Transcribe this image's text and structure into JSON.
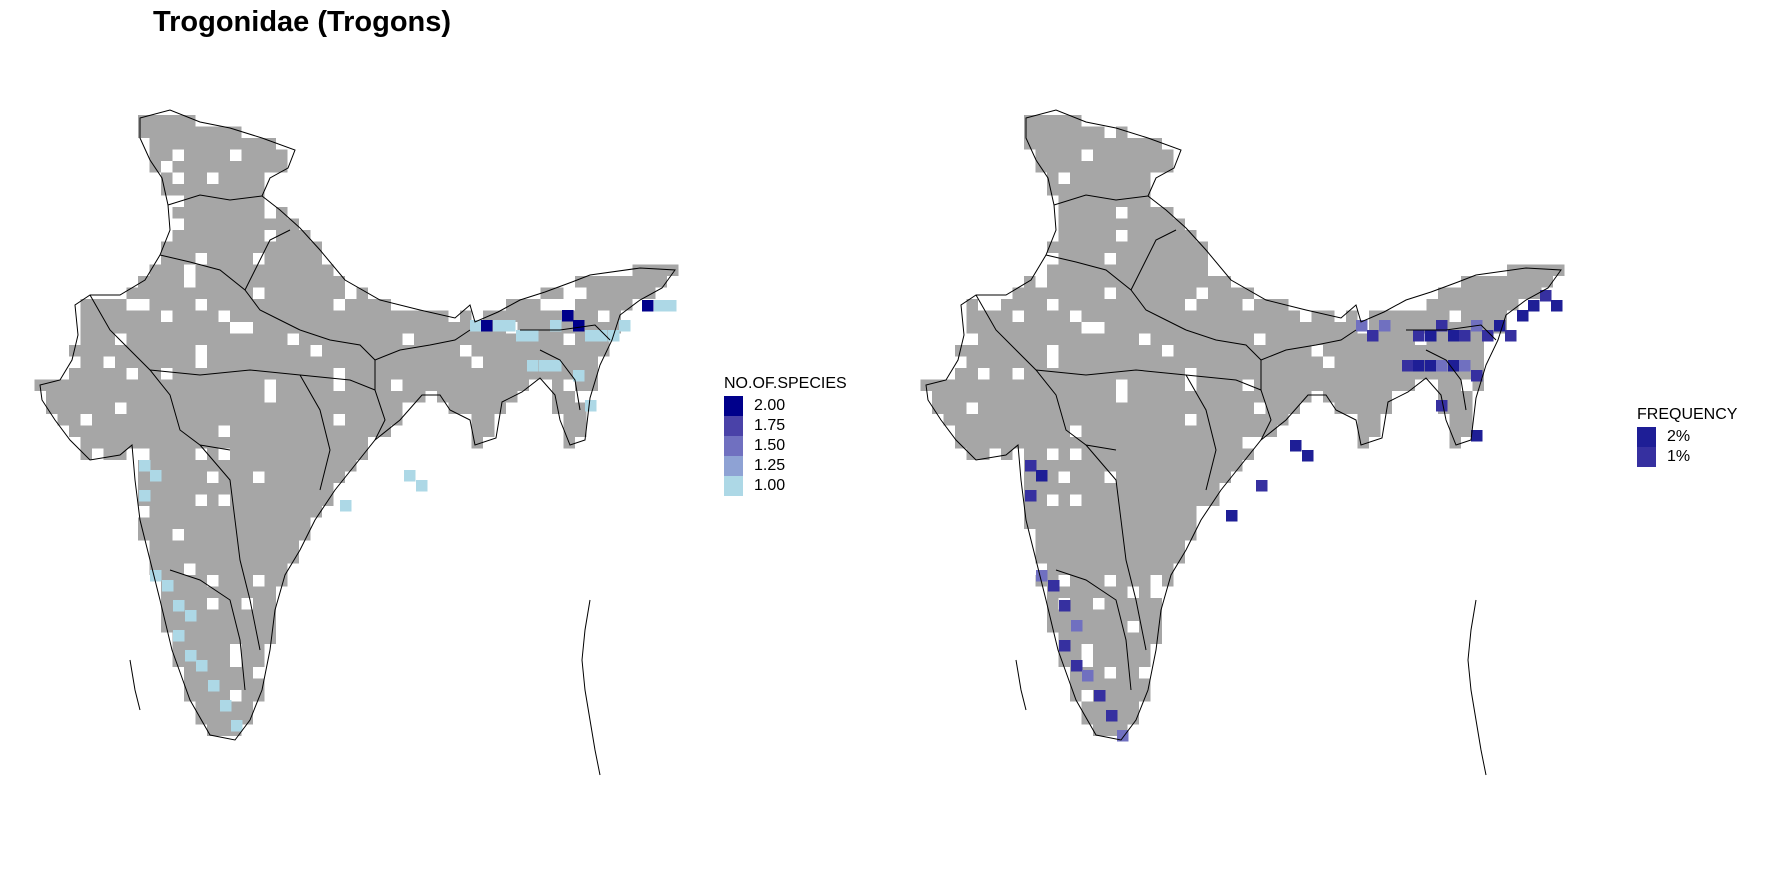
{
  "title": "Trogonidae (Trogons)",
  "colors": {
    "grid": "#a6a6a6",
    "border": "#000000",
    "low": "#add8e6",
    "high": "#00008b"
  },
  "legends": {
    "species": {
      "title": "NO.OF.SPECIES",
      "items": [
        {
          "label": "2.00",
          "color": "#00008b"
        },
        {
          "label": "1.75",
          "color": "#4a42a8"
        },
        {
          "label": "1.50",
          "color": "#7070c0"
        },
        {
          "label": "1.25",
          "color": "#8ea2d4"
        },
        {
          "label": "1.00",
          "color": "#add8e6"
        }
      ]
    },
    "frequency": {
      "title": "FREQUENCY",
      "items": [
        {
          "label": "2%",
          "color": "#1e1e96"
        },
        {
          "label": "1%",
          "color": "#3630a0"
        }
      ]
    }
  }
}
